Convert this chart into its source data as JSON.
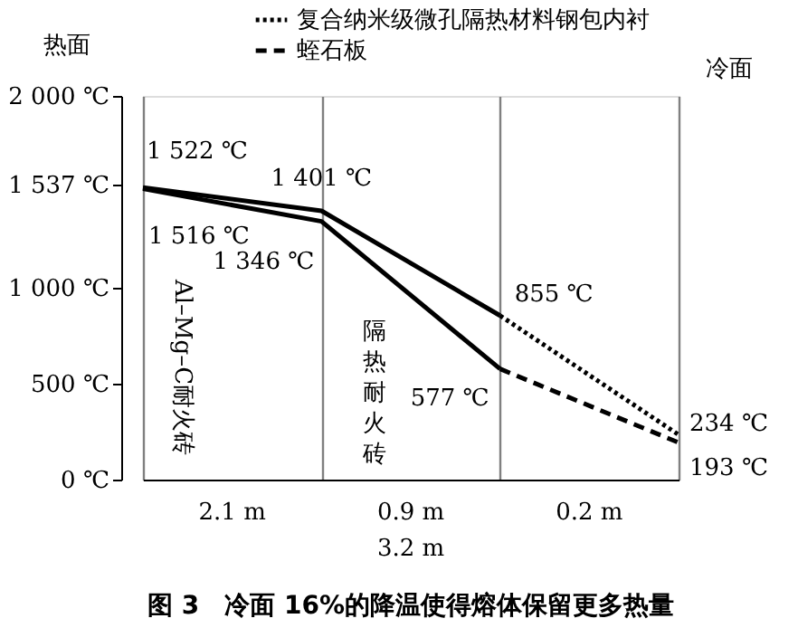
{
  "chart_data": {
    "type": "line",
    "title": "图 3　冷面 16%的降温使得熔体保留更多热量",
    "categories": [
      null,
      null,
      null,
      null
    ],
    "ylim": [
      0,
      2000
    ],
    "yticks": [
      {
        "value": 0,
        "label": "0 ℃"
      },
      {
        "value": 500,
        "label": "500 ℃"
      },
      {
        "value": 1000,
        "label": "1 000 ℃"
      },
      {
        "value": 1537,
        "label": "1 537 ℃"
      },
      {
        "value": 2000,
        "label": "2 000 ℃"
      }
    ],
    "tick_labels": "y",
    "grid": "x",
    "legend": "top right",
    "marker": "none",
    "series": [
      {
        "color": "#000000",
        "line_style": "solid",
        "values": [
          1522,
          1401,
          855,
          null
        ],
        "value_labels": [
          "1 522 ℃",
          "1 401 ℃",
          "855 ℃",
          null
        ]
      },
      {
        "name": "复合纳米级微孔隔热材料钢包内衬",
        "color": "#000000",
        "line_style": "dotted",
        "values": [
          null,
          null,
          855,
          234
        ],
        "value_labels": [
          null,
          null,
          null,
          "234 ℃"
        ]
      },
      {
        "color": "#000000",
        "line_style": "solid",
        "values": [
          1516,
          1346,
          577,
          null
        ],
        "value_labels": [
          "1 516 ℃",
          "1 346 ℃",
          "577 ℃",
          null
        ]
      },
      {
        "name": "蛭石板",
        "color": "#000000",
        "line_style": "dashed",
        "values": [
          null,
          null,
          577,
          193
        ],
        "value_labels": [
          null,
          null,
          null,
          "193 ℃"
        ]
      }
    ],
    "annotations": [
      "热面",
      "冷面",
      "Al–Mg–C耐火砖",
      "隔热耐火砖",
      "2.1 m",
      "0.9 m",
      "0.2 m",
      "3.2 m"
    ]
  }
}
